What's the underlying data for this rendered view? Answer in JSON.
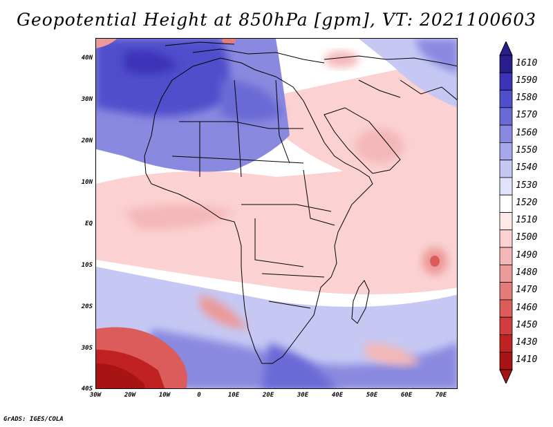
{
  "title": "Geopotential Height at 850hPa [gpm], VT: 2021100603",
  "credit": "GrADS: IGES/COLA",
  "axes": {
    "y_labels": [
      "40N",
      "30N",
      "20N",
      "10N",
      "EQ",
      "10S",
      "20S",
      "30S",
      "40S"
    ],
    "x_labels": [
      "30W",
      "20W",
      "10W",
      "0",
      "10E",
      "20E",
      "30E",
      "40E",
      "50E",
      "60E",
      "70E"
    ]
  },
  "colorbar": {
    "labels": [
      "1610",
      "1590",
      "1580",
      "1570",
      "1560",
      "1550",
      "1540",
      "1530",
      "1520",
      "1510",
      "1500",
      "1490",
      "1480",
      "1470",
      "1460",
      "1450",
      "1430",
      "1410"
    ],
    "colors": [
      "#2a1d8e",
      "#3c33b8",
      "#4f4fcc",
      "#6a6ad6",
      "#8a89e0",
      "#a7a8ea",
      "#c6c8f3",
      "#e1e3fb",
      "#ffffff",
      "#ffe8e8",
      "#fbd1d1",
      "#f4b7b7",
      "#ec9999",
      "#e47c7c",
      "#dc5c5c",
      "#d23c3c",
      "#c02222",
      "#a81414"
    ]
  },
  "map": {
    "region": "Africa and Middle East",
    "variable": "850hPa geopotential height",
    "unit": "gpm"
  }
}
